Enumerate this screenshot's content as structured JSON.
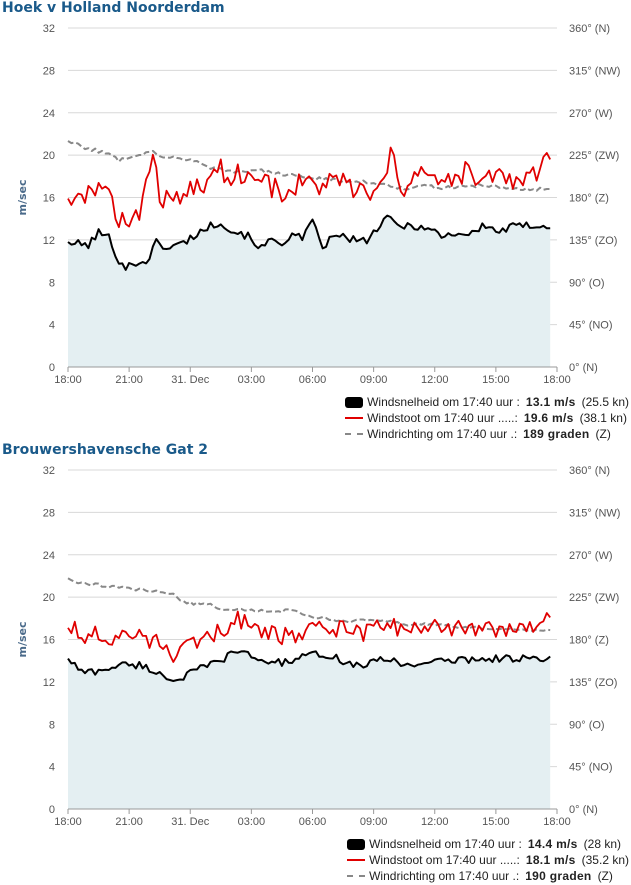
{
  "chart_data": [
    {
      "type": "line",
      "title": "Hoek v Holland Noorderdam",
      "ylabel": "m/sec",
      "ylim": [
        0,
        32
      ],
      "y_ticks": [
        "0",
        "4",
        "8",
        "12",
        "16",
        "20",
        "24",
        "28",
        "32"
      ],
      "y2lim": [
        0,
        360
      ],
      "y2_ticks": [
        "0° (N)",
        "45° (NO)",
        "90° (O)",
        "135° (ZO)",
        "180° (Z)",
        "225° (ZW)",
        "270° (W)",
        "315° (NW)",
        "360° (N)"
      ],
      "x_ticks": [
        "18:00",
        "21:00",
        "31. Dec",
        "03:00",
        "06:00",
        "09:00",
        "12:00",
        "15:00",
        "18:00"
      ],
      "x_range_hours": [
        0,
        24
      ],
      "x_end_hours": 23.67,
      "grid": true,
      "legend_position": "bottom-right",
      "series": [
        {
          "name": "Windsnelheid",
          "color": "#000000",
          "style": "area",
          "keypoints": [
            [
              0,
              11.8
            ],
            [
              0.5,
              11.6
            ],
            [
              1,
              11.5
            ],
            [
              1.5,
              12.7
            ],
            [
              2,
              12.2
            ],
            [
              2.5,
              10.1
            ],
            [
              2.8,
              9.4
            ],
            [
              3.5,
              9.9
            ],
            [
              4,
              10.2
            ],
            [
              4.3,
              11.8
            ],
            [
              5,
              11.2
            ],
            [
              5.8,
              11.9
            ],
            [
              6.5,
              12.8
            ],
            [
              7,
              13.3
            ],
            [
              7.5,
              13.8
            ],
            [
              8,
              12.8
            ],
            [
              8.5,
              12.7
            ],
            [
              9,
              12.1
            ],
            [
              9.5,
              11.2
            ],
            [
              10,
              12.0
            ],
            [
              10.5,
              11.8
            ],
            [
              11,
              12.4
            ],
            [
              11.5,
              12.1
            ],
            [
              12,
              13.6
            ],
            [
              12.5,
              11.4
            ],
            [
              13,
              12.2
            ],
            [
              13.5,
              12.3
            ],
            [
              14,
              12.0
            ],
            [
              14.5,
              11.8
            ],
            [
              15,
              12.6
            ],
            [
              15.5,
              13.8
            ],
            [
              15.8,
              14.0
            ],
            [
              16.2,
              13.3
            ],
            [
              17,
              13.4
            ],
            [
              17.5,
              13.1
            ],
            [
              18,
              12.8
            ],
            [
              18.5,
              12.3
            ],
            [
              19,
              12.7
            ],
            [
              19.5,
              12.5
            ],
            [
              20,
              12.8
            ],
            [
              20.5,
              13.4
            ],
            [
              21,
              12.8
            ],
            [
              21.5,
              13.0
            ],
            [
              22,
              13.3
            ],
            [
              22.5,
              13.3
            ],
            [
              23.2,
              13.5
            ],
            [
              23.67,
              13.1
            ]
          ],
          "noise": 0.4
        },
        {
          "name": "Windstoot",
          "color": "#e00000",
          "style": "line",
          "keypoints": [
            [
              0,
              15.9
            ],
            [
              0.7,
              15.4
            ],
            [
              1.2,
              16.9
            ],
            [
              1.7,
              17.7
            ],
            [
              2,
              16.1
            ],
            [
              2.3,
              14.2
            ],
            [
              3.5,
              14.3
            ],
            [
              3.9,
              17.6
            ],
            [
              4.2,
              20.6
            ],
            [
              4.5,
              16.0
            ],
            [
              5.5,
              16.1
            ],
            [
              6,
              16.8
            ],
            [
              6.8,
              17.0
            ],
            [
              7.2,
              19.1
            ],
            [
              7.8,
              18.2
            ],
            [
              8.5,
              18.3
            ],
            [
              9.5,
              17.6
            ],
            [
              10.5,
              16.5
            ],
            [
              11.2,
              17.1
            ],
            [
              11.8,
              17.6
            ],
            [
              12.5,
              16.9
            ],
            [
              13.5,
              17.7
            ],
            [
              14.2,
              16.5
            ],
            [
              14.8,
              16.1
            ],
            [
              15.4,
              16.6
            ],
            [
              15.8,
              19.8
            ],
            [
              16.5,
              16.9
            ],
            [
              17.3,
              18.5
            ],
            [
              18,
              17.2
            ],
            [
              18.8,
              17.5
            ],
            [
              19.5,
              18.4
            ],
            [
              20.2,
              17.2
            ],
            [
              21,
              18.2
            ],
            [
              21.8,
              17.6
            ],
            [
              22.5,
              17.6
            ],
            [
              23.2,
              18.8
            ],
            [
              23.67,
              19.6
            ]
          ],
          "noise": 1.1
        },
        {
          "name": "Windrichting",
          "color": "#888888",
          "style": "dashed",
          "axis": "right",
          "keypoints": [
            [
              0,
              240
            ],
            [
              1,
              232
            ],
            [
              2,
              226
            ],
            [
              2.5,
              220
            ],
            [
              3.5,
              226
            ],
            [
              4,
              229
            ],
            [
              5,
              222
            ],
            [
              6.5,
              218
            ],
            [
              7,
              212
            ],
            [
              8,
              208
            ],
            [
              9.5,
              208
            ],
            [
              10.5,
              205
            ],
            [
              11.5,
              202
            ],
            [
              12.5,
              200
            ],
            [
              13.5,
              197
            ],
            [
              14.5,
              197
            ],
            [
              15.5,
              194
            ],
            [
              16.5,
              190
            ],
            [
              17.5,
              192
            ],
            [
              18.5,
              190
            ],
            [
              19.5,
              192
            ],
            [
              20.5,
              193
            ],
            [
              21.5,
              190
            ],
            [
              22.5,
              189
            ],
            [
              23.67,
              189
            ]
          ],
          "noise": 2.0
        }
      ],
      "legend": [
        {
          "label": "Windsnelheid om 17:40 uur :",
          "value": "13.1 m/s",
          "extra": "(25.5 kn)"
        },
        {
          "label": "Windstoot om 17:40 uur .....:",
          "value": "19.6 m/s",
          "extra": "(38.1 kn)"
        },
        {
          "label": "Windrichting om 17:40 uur .:",
          "value": "189 graden",
          "extra": "(Z)"
        }
      ]
    },
    {
      "type": "line",
      "title": "Brouwershavensche Gat 2",
      "ylabel": "m/sec",
      "ylim": [
        0,
        32
      ],
      "y_ticks": [
        "0",
        "4",
        "8",
        "12",
        "16",
        "20",
        "24",
        "28",
        "32"
      ],
      "y2lim": [
        0,
        360
      ],
      "y2_ticks": [
        "0° (N)",
        "45° (NO)",
        "90° (O)",
        "135° (ZO)",
        "180° (Z)",
        "225° (ZW)",
        "270° (W)",
        "315° (NW)",
        "360° (N)"
      ],
      "x_ticks": [
        "18:00",
        "21:00",
        "31. Dec",
        "03:00",
        "06:00",
        "09:00",
        "12:00",
        "15:00",
        "18:00"
      ],
      "x_range_hours": [
        0,
        24
      ],
      "x_end_hours": 23.67,
      "grid": true,
      "legend_position": "bottom-right",
      "series": [
        {
          "name": "Windsnelheid",
          "color": "#000000",
          "style": "area",
          "keypoints": [
            [
              0,
              14.2
            ],
            [
              0.7,
              12.9
            ],
            [
              1.5,
              13.0
            ],
            [
              2.5,
              13.6
            ],
            [
              3.5,
              13.6
            ],
            [
              4.5,
              12.8
            ],
            [
              5.2,
              12.1
            ],
            [
              6,
              12.8
            ],
            [
              6.8,
              13.5
            ],
            [
              7.5,
              14.0
            ],
            [
              8.2,
              14.9
            ],
            [
              8.8,
              14.6
            ],
            [
              9.5,
              14.0
            ],
            [
              10.5,
              13.8
            ],
            [
              11.5,
              14.3
            ],
            [
              12.5,
              14.7
            ],
            [
              13.2,
              14.2
            ],
            [
              14,
              13.6
            ],
            [
              14.6,
              13.6
            ],
            [
              15.2,
              14.0
            ],
            [
              16,
              14.1
            ],
            [
              16.6,
              13.5
            ],
            [
              17.2,
              13.8
            ],
            [
              18,
              13.9
            ],
            [
              18.7,
              14.0
            ],
            [
              19.5,
              14.1
            ],
            [
              20.5,
              14.2
            ],
            [
              21.5,
              14.2
            ],
            [
              22.5,
              14.3
            ],
            [
              23.2,
              13.9
            ],
            [
              23.67,
              14.4
            ]
          ],
          "noise": 0.35
        },
        {
          "name": "Windstoot",
          "color": "#e00000",
          "style": "line",
          "keypoints": [
            [
              0,
              17.1
            ],
            [
              0.6,
              16.6
            ],
            [
              1.2,
              16.4
            ],
            [
              2,
              16.2
            ],
            [
              3,
              16.1
            ],
            [
              3.7,
              16.3
            ],
            [
              4.5,
              15.4
            ],
            [
              5.3,
              14.5
            ],
            [
              6,
              15.2
            ],
            [
              6.8,
              16.1
            ],
            [
              7.6,
              17.1
            ],
            [
              8.2,
              17.9
            ],
            [
              8.8,
              17.3
            ],
            [
              9.5,
              16.8
            ],
            [
              10.5,
              16.3
            ],
            [
              11.2,
              16.6
            ],
            [
              12,
              17.3
            ],
            [
              12.8,
              17.1
            ],
            [
              13.5,
              16.9
            ],
            [
              14.3,
              16.6
            ],
            [
              15,
              17.0
            ],
            [
              15.8,
              17.1
            ],
            [
              16.5,
              17.0
            ],
            [
              17.2,
              16.9
            ],
            [
              18,
              17.0
            ],
            [
              18.8,
              16.9
            ],
            [
              19.5,
              17.1
            ],
            [
              20.3,
              17.1
            ],
            [
              21,
              17.0
            ],
            [
              21.8,
              17.3
            ],
            [
              22.5,
              16.9
            ],
            [
              23.1,
              16.5
            ],
            [
              23.67,
              18.1
            ]
          ],
          "noise": 0.9
        },
        {
          "name": "Windrichting",
          "color": "#888888",
          "style": "dashed",
          "axis": "right",
          "keypoints": [
            [
              0,
              245
            ],
            [
              0.6,
              240
            ],
            [
              1.5,
              238
            ],
            [
              2.5,
              235
            ],
            [
              3.5,
              233
            ],
            [
              4.5,
              231
            ],
            [
              5.2,
              228
            ],
            [
              5.6,
              220
            ],
            [
              6.2,
              218
            ],
            [
              6.8,
              218
            ],
            [
              7.5,
              213
            ],
            [
              8.5,
              212
            ],
            [
              9.5,
              211
            ],
            [
              10.5,
              210
            ],
            [
              11,
              212
            ],
            [
              12,
              204
            ],
            [
              13,
              201
            ],
            [
              13.5,
              199
            ],
            [
              14.5,
              200
            ],
            [
              15.5,
              201
            ],
            [
              16.5,
              196
            ],
            [
              17.5,
              196
            ],
            [
              18.5,
              195
            ],
            [
              19.5,
              193
            ],
            [
              20.5,
              192
            ],
            [
              21.5,
              192
            ],
            [
              22.5,
              190
            ],
            [
              23.67,
              190
            ]
          ],
          "noise": 1.5
        }
      ],
      "legend": [
        {
          "label": "Windsnelheid om 17:40 uur :",
          "value": "14.4 m/s",
          "extra": "(28 kn)"
        },
        {
          "label": "Windstoot om 17:40 uur .....:",
          "value": "18.1 m/s",
          "extra": "(35.2 kn)"
        },
        {
          "label": "Windrichting om 17:40 uur .:",
          "value": "190 graden",
          "extra": "(Z)"
        }
      ]
    }
  ]
}
